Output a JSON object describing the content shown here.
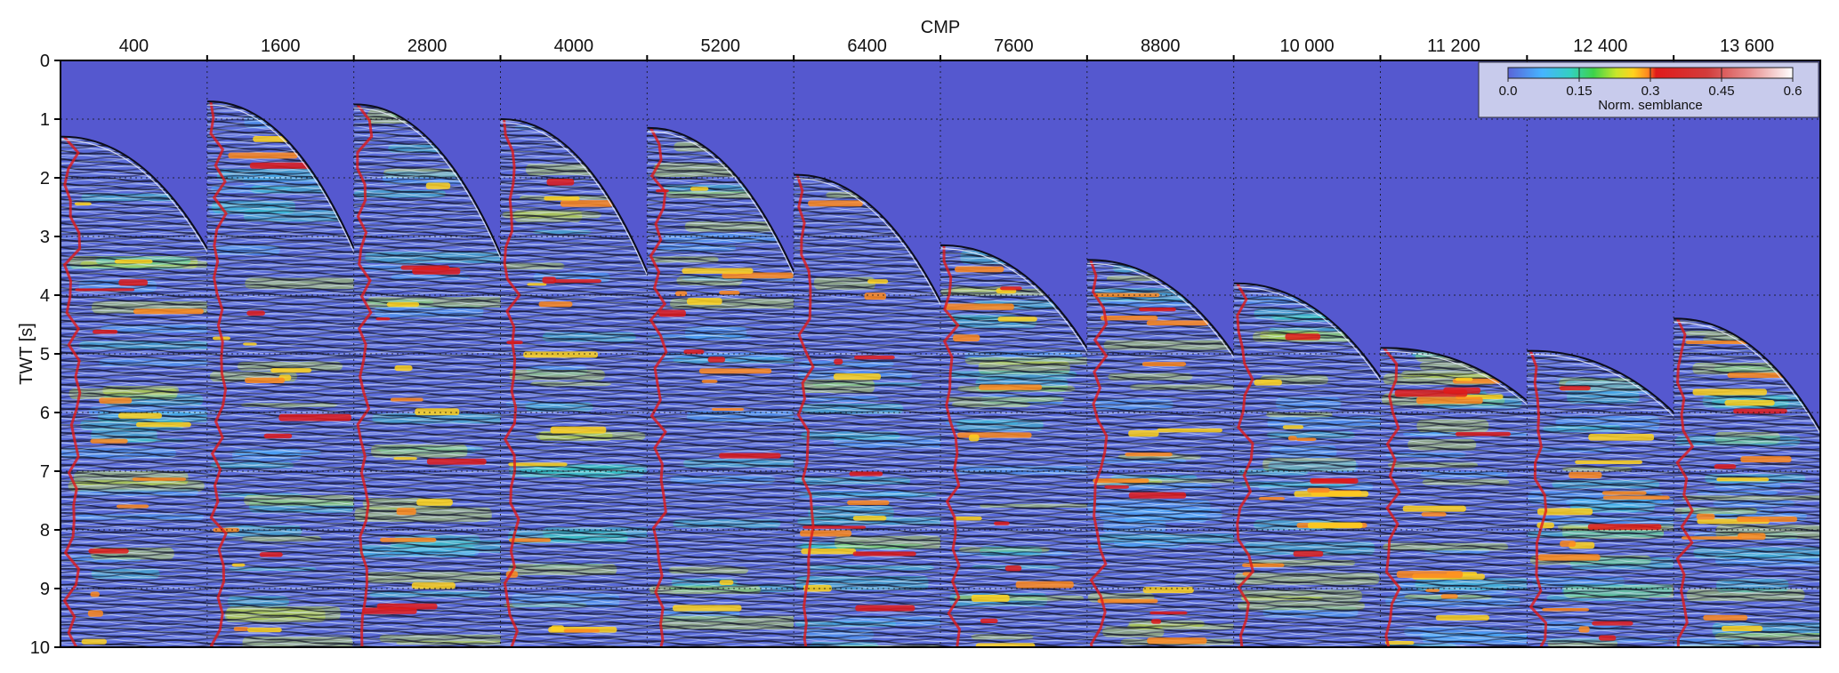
{
  "chart_data": {
    "type": "heatmap",
    "title": "",
    "xlabel": "CMP",
    "ylabel": "TWT [s]",
    "x_ticks": [
      400,
      1600,
      2800,
      4000,
      5200,
      6400,
      7600,
      8800,
      10000,
      11200,
      12400,
      13600
    ],
    "x_tick_labels": [
      "400",
      "1600",
      "2800",
      "4000",
      "5200",
      "6400",
      "7600",
      "8800",
      "10 000",
      "11 200",
      "12 400",
      "13 600"
    ],
    "y_ticks": [
      0,
      1,
      2,
      3,
      4,
      5,
      6,
      7,
      8,
      9,
      10
    ],
    "y_tick_labels": [
      "0",
      "1",
      "2",
      "3",
      "4",
      "5",
      "6",
      "7",
      "8",
      "9",
      "10"
    ],
    "ylim": [
      0,
      10
    ],
    "y_inverted": true,
    "grid": true,
    "panels": [
      {
        "cmp": 400,
        "first_arrival_s": 1.3,
        "far_offset_s": 3.2
      },
      {
        "cmp": 1600,
        "first_arrival_s": 0.7,
        "far_offset_s": 3.2
      },
      {
        "cmp": 2800,
        "first_arrival_s": 0.75,
        "far_offset_s": 3.3
      },
      {
        "cmp": 4000,
        "first_arrival_s": 1.0,
        "far_offset_s": 3.6
      },
      {
        "cmp": 5200,
        "first_arrival_s": 1.15,
        "far_offset_s": 3.6
      },
      {
        "cmp": 6400,
        "first_arrival_s": 1.95,
        "far_offset_s": 4.1
      },
      {
        "cmp": 7600,
        "first_arrival_s": 3.15,
        "far_offset_s": 4.9
      },
      {
        "cmp": 8800,
        "first_arrival_s": 3.4,
        "far_offset_s": 5.0
      },
      {
        "cmp": 10000,
        "first_arrival_s": 3.8,
        "far_offset_s": 5.4
      },
      {
        "cmp": 11200,
        "first_arrival_s": 4.9,
        "far_offset_s": 5.8
      },
      {
        "cmp": 12400,
        "first_arrival_s": 4.95,
        "far_offset_s": 6.0
      },
      {
        "cmp": 13600,
        "first_arrival_s": 4.4,
        "far_offset_s": 6.3
      }
    ],
    "colorbar": {
      "label": "Norm. semblance",
      "range": [
        0.0,
        0.6
      ],
      "ticks": [
        0.0,
        0.15,
        0.3,
        0.45,
        0.6
      ],
      "tick_labels": [
        "0.0",
        "0.15",
        "0.3",
        "0.45",
        "0.6"
      ],
      "colors": [
        "#5a64d8",
        "#46b4ff",
        "#33d0c0",
        "#3dd24a",
        "#c8e62a",
        "#ffd21e",
        "#ff8a1e",
        "#e01a1a",
        "#d23c3c",
        "#e89090",
        "#ffffff"
      ],
      "placement": "top-right"
    },
    "background_color": "#5558cf"
  }
}
